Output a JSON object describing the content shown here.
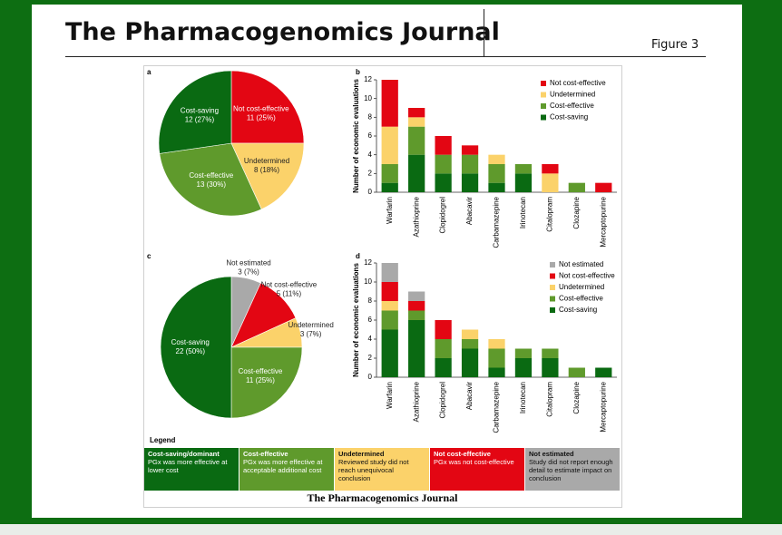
{
  "header": {
    "title": "The Pharmacogenomics Journal",
    "figure": "Figure 3"
  },
  "chart_data": [
    {
      "panel": "a",
      "type": "pie",
      "categories": [
        "Not cost-effective",
        "Undetermined",
        "Cost-effective",
        "Cost-saving"
      ],
      "values": [
        11,
        8,
        13,
        12
      ],
      "value_labels": [
        "11 (25%)",
        "8 (18%)",
        "13 (30%)",
        "12 (27%)"
      ],
      "colors": [
        "#e30613",
        "#fbd26a",
        "#5f9a2c",
        "#0a6a12"
      ]
    },
    {
      "panel": "b",
      "type": "bar",
      "stacked": true,
      "ylabel": "Number of economic evaluations",
      "categories": [
        "Warfarin",
        "Azathioprine",
        "Clopidogrel",
        "Abacavir",
        "Carbamazepine",
        "Irinotecan",
        "Citalopram",
        "Clozapine",
        "Mercaptopurine"
      ],
      "series": [
        {
          "name": "Cost-saving",
          "color": "#0a6a12",
          "values": [
            1,
            4,
            2,
            2,
            1,
            2,
            0,
            0,
            0
          ]
        },
        {
          "name": "Cost-effective",
          "color": "#5f9a2c",
          "values": [
            2,
            3,
            2,
            2,
            2,
            1,
            0,
            1,
            0
          ]
        },
        {
          "name": "Undetermined",
          "color": "#fbd26a",
          "values": [
            4,
            1,
            0,
            0,
            1,
            0,
            2,
            0,
            0
          ]
        },
        {
          "name": "Not cost-effective",
          "color": "#e30613",
          "values": [
            5,
            1,
            2,
            1,
            0,
            0,
            1,
            0,
            1
          ]
        }
      ],
      "ylim": [
        0,
        12
      ],
      "yticks": [
        0,
        2,
        4,
        6,
        8,
        10,
        12
      ],
      "legend": "top-right"
    },
    {
      "panel": "c",
      "type": "pie",
      "categories": [
        "Not estimated",
        "Not cost-effective",
        "Undetermined",
        "Cost-effective",
        "Cost-saving"
      ],
      "values": [
        3,
        5,
        3,
        11,
        22
      ],
      "value_labels": [
        "3 (7%)",
        "5 (11%)",
        "3 (7%)",
        "11 (25%)",
        "22 (50%)"
      ],
      "colors": [
        "#a9a9a9",
        "#e30613",
        "#fbd26a",
        "#5f9a2c",
        "#0a6a12"
      ]
    },
    {
      "panel": "d",
      "type": "bar",
      "stacked": true,
      "ylabel": "Number of economic evaluations",
      "categories": [
        "Warfarin",
        "Azathioprine",
        "Clopidogrel",
        "Abacavir",
        "Carbamazepine",
        "Irinotecan",
        "Citalopram",
        "Clozapine",
        "Mercaptopurine"
      ],
      "series": [
        {
          "name": "Cost-saving",
          "color": "#0a6a12",
          "values": [
            5,
            6,
            2,
            3,
            1,
            2,
            2,
            0,
            1
          ]
        },
        {
          "name": "Cost-effective",
          "color": "#5f9a2c",
          "values": [
            2,
            1,
            2,
            1,
            2,
            1,
            1,
            1,
            0
          ]
        },
        {
          "name": "Undetermined",
          "color": "#fbd26a",
          "values": [
            1,
            0,
            0,
            1,
            1,
            0,
            0,
            0,
            0
          ]
        },
        {
          "name": "Not cost-effective",
          "color": "#e30613",
          "values": [
            2,
            1,
            2,
            0,
            0,
            0,
            0,
            0,
            0
          ]
        },
        {
          "name": "Not estimated",
          "color": "#a9a9a9",
          "values": [
            2,
            1,
            0,
            0,
            0,
            0,
            0,
            0,
            0
          ]
        }
      ],
      "ylim": [
        0,
        12
      ],
      "yticks": [
        0,
        2,
        4,
        6,
        8,
        10,
        12
      ],
      "legend": "top-right"
    }
  ],
  "legend": {
    "title": "Legend",
    "items": [
      {
        "heading": "Cost-saving/dominant",
        "text": "PGx was more effective at lower cost",
        "color": "#0a6a12"
      },
      {
        "heading": "Cost-effective",
        "text": "PGx was more effective at acceptable additional cost",
        "color": "#5f9a2c"
      },
      {
        "heading": "Undetermined",
        "text": "Reviewed study did not reach unequivocal conclusion",
        "color": "#fbd26a"
      },
      {
        "heading": "Not cost-effective",
        "text": "PGx was not cost-effective",
        "color": "#e30613"
      },
      {
        "heading": "Not estimated",
        "text": "Study did not report enough detail to estimate impact on conclusion",
        "color": "#a9a9a9"
      }
    ]
  },
  "footer": "The Pharmacogenomics Journal"
}
